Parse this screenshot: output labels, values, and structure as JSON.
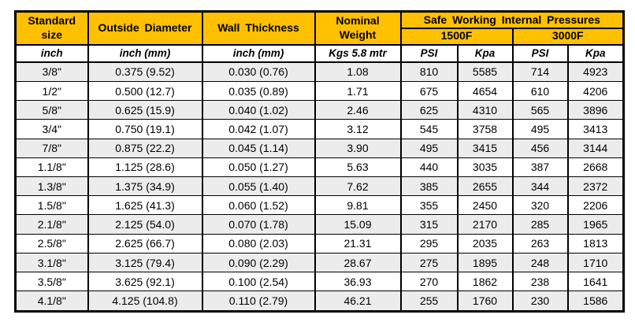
{
  "table": {
    "header": {
      "standard_size": "Standard size",
      "outside_diameter": "Outside Diameter",
      "wall_thickness": "Wall Thickness",
      "nominal_weight": "Nominal Weight",
      "pressures_group": "Safe Working Internal Pressures",
      "temp_1500": "1500F",
      "temp_3000": "3000F"
    },
    "units": [
      "inch",
      "inch (mm)",
      "inch (mm)",
      "Kgs 5.8 mtr",
      "PSI",
      "Kpa",
      "PSI",
      "Kpa"
    ],
    "rows": [
      [
        "3/8\"",
        "0.375 (9.52)",
        "0.030 (0.76)",
        "1.08",
        "810",
        "5585",
        "714",
        "4923"
      ],
      [
        "1/2\"",
        "0.500 (12.7)",
        "0.035 (0.89)",
        "1.71",
        "675",
        "4654",
        "610",
        "4206"
      ],
      [
        "5/8\"",
        "0.625 (15.9)",
        "0.040 (1.02)",
        "2.46",
        "625",
        "4310",
        "565",
        "3896"
      ],
      [
        "3/4\"",
        "0.750 (19.1)",
        "0.042 (1.07)",
        "3.12",
        "545",
        "3758",
        "495",
        "3413"
      ],
      [
        "7/8\"",
        "0.875 (22.2)",
        "0.045 (1.14)",
        "3.90",
        "495",
        "3415",
        "456",
        "3144"
      ],
      [
        "1.1/8\"",
        "1.125 (28.6)",
        "0.050 (1.27)",
        "5.63",
        "440",
        "3035",
        "387",
        "2668"
      ],
      [
        "1.3/8\"",
        "1.375 (34.9)",
        "0.055 (1.40)",
        "7.62",
        "385",
        "2655",
        "344",
        "2372"
      ],
      [
        "1.5/8\"",
        "1.625 (41.3)",
        "0.060 (1.52)",
        "9.81",
        "355",
        "2450",
        "320",
        "2206"
      ],
      [
        "2.1/8\"",
        "2.125 (54.0)",
        "0.070 (1.78)",
        "15.09",
        "315",
        "2170",
        "285",
        "1965"
      ],
      [
        "2.5/8\"",
        "2.625 (66.7)",
        "0.080 (2.03)",
        "21.31",
        "295",
        "2035",
        "263",
        "1813"
      ],
      [
        "3.1/8\"",
        "3.125 (79.4)",
        "0.090 (2.29)",
        "28.67",
        "275",
        "1895",
        "248",
        "1710"
      ],
      [
        "3.5/8\"",
        "3.625 (92.1)",
        "0.100 (2.54)",
        "36.93",
        "270",
        "1862",
        "238",
        "1641"
      ],
      [
        "4.1/8\"",
        "4.125 (104.8)",
        "0.110 (2.79)",
        "46.21",
        "255",
        "1760",
        "230",
        "1586"
      ]
    ],
    "colors": {
      "header_bg": "#FFC000",
      "row_alt_bg": "#ECECEC",
      "row_bg": "#FFFFFF",
      "border": "#000000",
      "text": "#000000"
    }
  }
}
